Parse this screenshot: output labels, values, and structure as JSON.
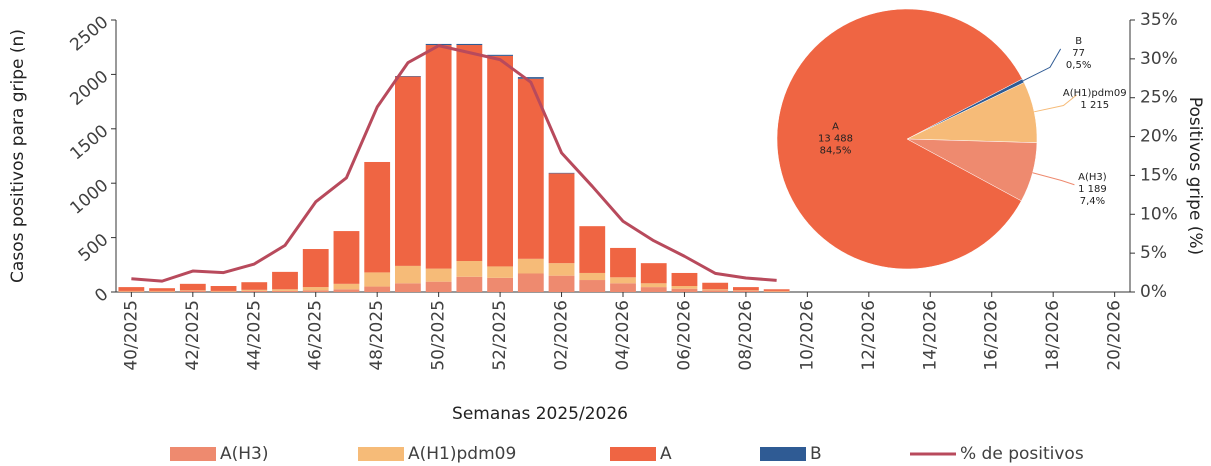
{
  "chart_data": [
    {
      "type": "bar",
      "stacked": true,
      "x_label": "Semanas 2025/2026",
      "y_label": "Casos positivos para gripe (n)",
      "y2_label": "Positivos gripe (%)",
      "categories": [
        "40/2025",
        null,
        "42/2025",
        null,
        "44/2025",
        null,
        "46/2025",
        null,
        "48/2025",
        null,
        "50/2025",
        null,
        "52/2025",
        null,
        "02/2026",
        null,
        "04/2026",
        null,
        "06/2026",
        null,
        "08/2026",
        null,
        "10/2026",
        null,
        "12/2026",
        null,
        "14/2026",
        null,
        "16/2026",
        null,
        "18/2026",
        null,
        "20/2026"
      ],
      "series": [
        {
          "name": "A(H3)",
          "color": "#ee8a6f",
          "values": [
            5,
            5,
            10,
            5,
            10,
            10,
            15,
            25,
            50,
            80,
            95,
            140,
            130,
            170,
            150,
            110,
            80,
            45,
            30,
            15,
            10,
            5,
            0,
            0,
            0,
            0,
            0,
            0,
            0,
            0,
            0,
            0,
            0
          ]
        },
        {
          "name": "A(H1)pdm09",
          "color": "#f6bb78",
          "values": [
            5,
            5,
            5,
            5,
            10,
            15,
            30,
            50,
            130,
            160,
            120,
            145,
            105,
            135,
            115,
            65,
            55,
            35,
            25,
            10,
            5,
            5,
            0,
            0,
            0,
            0,
            0,
            0,
            0,
            0,
            0,
            0,
            0
          ]
        },
        {
          "name": "A",
          "color": "#ef6543",
          "values": [
            35,
            25,
            60,
            45,
            70,
            160,
            350,
            485,
            1015,
            1740,
            2055,
            1985,
            1935,
            1655,
            825,
            430,
            270,
            185,
            120,
            60,
            30,
            15,
            0,
            0,
            0,
            0,
            0,
            0,
            0,
            0,
            0,
            0,
            0
          ]
        },
        {
          "name": "B",
          "color": "#2f5b94",
          "values": [
            0,
            0,
            0,
            0,
            0,
            0,
            0,
            0,
            0,
            5,
            10,
            10,
            10,
            15,
            5,
            0,
            0,
            0,
            0,
            0,
            0,
            0,
            0,
            0,
            0,
            0,
            0,
            0,
            0,
            0,
            0,
            0,
            0
          ]
        },
        {
          "name": "% de positivos",
          "type": "line",
          "axis": "y2",
          "color": "#b84a5c",
          "values": [
            1.7,
            1.4,
            2.7,
            2.5,
            3.6,
            6.0,
            11.6,
            14.7,
            23.8,
            29.5,
            31.7,
            30.8,
            29.9,
            27.0,
            17.9,
            13.6,
            9.1,
            6.6,
            4.6,
            2.4,
            1.8,
            1.5,
            null,
            null,
            null,
            null,
            null,
            null,
            null,
            null,
            null,
            null,
            null
          ]
        }
      ],
      "ylim": [
        0,
        2500
      ],
      "yticks": [
        0,
        500,
        1000,
        1500,
        2000,
        2500
      ],
      "y2lim": [
        0,
        35
      ],
      "y2ticks": [
        {
          "value": 0,
          "label": "0%"
        },
        {
          "value": 5,
          "label": "5%"
        },
        {
          "value": 10,
          "label": "10%"
        },
        {
          "value": 15,
          "label": "15%"
        },
        {
          "value": 20,
          "label": "20%"
        },
        {
          "value": 25,
          "label": "25%"
        },
        {
          "value": 30,
          "label": "30%"
        },
        {
          "value": 35,
          "label": "35%"
        }
      ],
      "legend": "bottom"
    },
    {
      "type": "pie",
      "categories": [
        "B",
        "A(H1)pdm09",
        "A(H3)",
        "A"
      ],
      "values": [
        77,
        1215,
        1189,
        13488
      ],
      "value_labels": [
        "77",
        "1 215",
        "1 189",
        "13 488"
      ],
      "percents": [
        0.5,
        null,
        7.4,
        84.5
      ],
      "percent_labels": [
        "0,5%",
        null,
        "7,4%",
        "84,5%"
      ],
      "colors": [
        "#2f5b94",
        "#f6bb78",
        "#ee8a6f",
        "#ef6543"
      ]
    }
  ]
}
